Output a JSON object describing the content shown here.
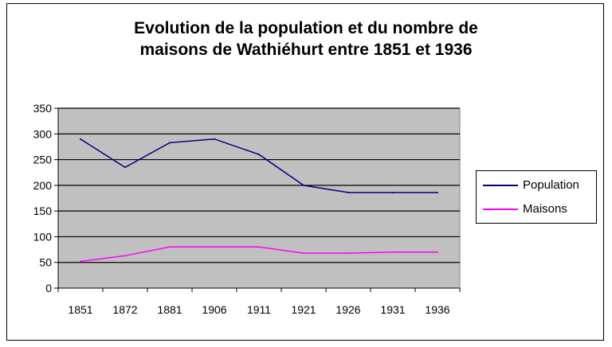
{
  "chart_data": {
    "type": "line",
    "title_lines": [
      "Evolution de la population et du nombre de",
      "maisons de Wathiéhurt entre 1851 et 1936"
    ],
    "categories": [
      "1851",
      "1872",
      "1881",
      "1906",
      "1911",
      "1921",
      "1926",
      "1931",
      "1936"
    ],
    "yticks": [
      "0",
      "50",
      "100",
      "150",
      "200",
      "250",
      "300",
      "350"
    ],
    "ylim": [
      0,
      350
    ],
    "grid": true,
    "legend_position": "right",
    "series": [
      {
        "name": "Population",
        "color": "#000080",
        "values": [
          290,
          235,
          283,
          290,
          260,
          200,
          186,
          186,
          186
        ]
      },
      {
        "name": "Maisons",
        "color": "#ff00ff",
        "values": [
          52,
          63,
          80,
          80,
          80,
          68,
          68,
          70,
          70
        ]
      }
    ],
    "plot_background": "#c0c0c0"
  }
}
